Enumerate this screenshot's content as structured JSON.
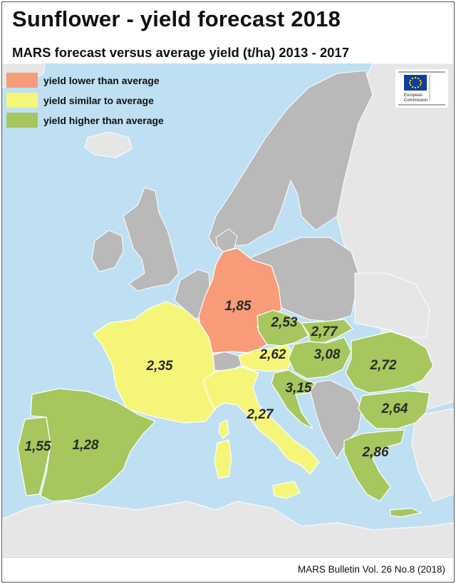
{
  "title": "Sunflower - yield forecast 2018",
  "subtitle": "MARS forecast versus average yield (t/ha) 2013 - 2017",
  "legend": [
    {
      "label": "yield lower than average",
      "color": "#f79b78"
    },
    {
      "label": "yield similar to average",
      "color": "#f5f57a"
    },
    {
      "label": "yield higher than average",
      "color": "#a5c75d"
    }
  ],
  "logo": {
    "line1": "European",
    "line2": "Commission"
  },
  "footer": "MARS Bulletin Vol. 26 No.8 (2018)",
  "colors": {
    "sea": "#bfe0f2",
    "non_forecast_land": "#b9b9b9",
    "outside_land": "#e6e6e6",
    "border": "#ffffff"
  },
  "regions": [
    {
      "id": "germany",
      "value": "1,85",
      "class": "lower"
    },
    {
      "id": "france",
      "value": "2,35",
      "class": "similar"
    },
    {
      "id": "austria",
      "value": "2,62",
      "class": "similar"
    },
    {
      "id": "italy",
      "value": "2,27",
      "class": "similar"
    },
    {
      "id": "portugal",
      "value": "1,55",
      "class": "higher"
    },
    {
      "id": "spain",
      "value": "1,28",
      "class": "higher"
    },
    {
      "id": "czechia",
      "value": "2,53",
      "class": "higher"
    },
    {
      "id": "slovakia",
      "value": "2,77",
      "class": "higher"
    },
    {
      "id": "hungary",
      "value": "3,08",
      "class": "higher"
    },
    {
      "id": "croatia",
      "value": "3,15",
      "class": "higher"
    },
    {
      "id": "romania",
      "value": "2,72",
      "class": "higher"
    },
    {
      "id": "bulgaria",
      "value": "2,64",
      "class": "higher"
    },
    {
      "id": "greece",
      "value": "2,86",
      "class": "higher"
    }
  ]
}
